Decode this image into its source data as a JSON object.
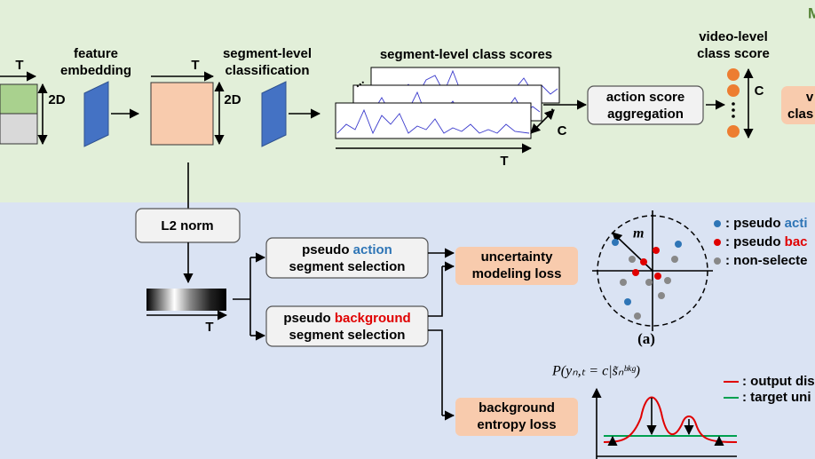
{
  "corner_label": "M",
  "top": {
    "input_time": "T",
    "input_dim": "2D",
    "feature_embedding": [
      "feature",
      "embedding"
    ],
    "embed_time": "T",
    "embed_dim": "2D",
    "segment_classification": [
      "segment-level",
      "classification"
    ],
    "class_scores": "segment-level class scores",
    "scores_time": "T",
    "scores_class": "C",
    "aggregation": [
      "action score",
      "aggregation"
    ],
    "video_score": [
      "video-level",
      "class score"
    ],
    "video_class": "C",
    "output_box": [
      "v",
      "clas"
    ]
  },
  "bottom": {
    "l2_norm": "L2 norm",
    "bar_time": "T",
    "action_selection": {
      "prefix": "pseudo ",
      "highlight": "action",
      "line2": "segment selection"
    },
    "background_selection": {
      "prefix": "pseudo ",
      "highlight": "background",
      "line2": "segment selection"
    },
    "uncertainty_loss": [
      "uncertainty",
      "modeling loss"
    ],
    "entropy_loss": [
      "background",
      "entropy loss"
    ],
    "margin_label": "m",
    "panel_label": "(a)",
    "legend": [
      {
        "prefix": ": pseudo ",
        "highlight": "acti"
      },
      {
        "prefix": ": pseudo ",
        "highlight": "bac"
      },
      {
        "prefix": ": non-selecte"
      }
    ],
    "formula": "P(yₙ,ₜ = c|s̃ₙᵇᵏᵍ)",
    "dist_legend": [
      ": output dis",
      ": target uni"
    ]
  }
}
